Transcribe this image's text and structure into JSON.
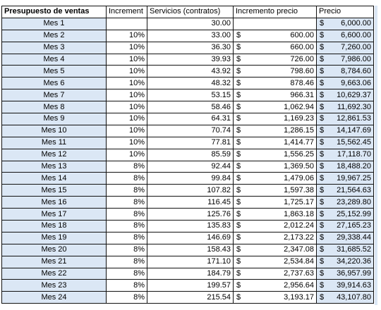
{
  "headers": [
    "Presupuesto de ventas",
    "Increment",
    "Servicios (contratos)",
    "Incremento precio",
    "Precio"
  ],
  "currency": "$",
  "rows": [
    {
      "label": "Mes 1",
      "pct": "",
      "serv": "30.00",
      "inc": "",
      "price": "6,000.00"
    },
    {
      "label": "Mes 2",
      "pct": "10%",
      "serv": "33.00",
      "inc": "600.00",
      "price": "6,600.00"
    },
    {
      "label": "Mes 3",
      "pct": "10%",
      "serv": "36.30",
      "inc": "660.00",
      "price": "7,260.00"
    },
    {
      "label": "Mes 4",
      "pct": "10%",
      "serv": "39.93",
      "inc": "726.00",
      "price": "7,986.00"
    },
    {
      "label": "Mes 5",
      "pct": "10%",
      "serv": "43.92",
      "inc": "798.60",
      "price": "8,784.60"
    },
    {
      "label": "Mes 6",
      "pct": "10%",
      "serv": "48.32",
      "inc": "878.46",
      "price": "9,663.06"
    },
    {
      "label": "Mes 7",
      "pct": "10%",
      "serv": "53.15",
      "inc": "966.31",
      "price": "10,629.37"
    },
    {
      "label": "Mes 8",
      "pct": "10%",
      "serv": "58.46",
      "inc": "1,062.94",
      "price": "11,692.30"
    },
    {
      "label": "Mes 9",
      "pct": "10%",
      "serv": "64.31",
      "inc": "1,169.23",
      "price": "12,861.53"
    },
    {
      "label": "Mes 10",
      "pct": "10%",
      "serv": "70.74",
      "inc": "1,286.15",
      "price": "14,147.69"
    },
    {
      "label": "Mes 11",
      "pct": "10%",
      "serv": "77.81",
      "inc": "1,414.77",
      "price": "15,562.45"
    },
    {
      "label": "Mes 12",
      "pct": "10%",
      "serv": "85.59",
      "inc": "1,556.25",
      "price": "17,118.70"
    },
    {
      "label": "Mes 13",
      "pct": "8%",
      "serv": "92.44",
      "inc": "1,369.50",
      "price": "18,488.20"
    },
    {
      "label": "Mes 14",
      "pct": "8%",
      "serv": "99.84",
      "inc": "1,479.06",
      "price": "19,967.25"
    },
    {
      "label": "Mes 15",
      "pct": "8%",
      "serv": "107.82",
      "inc": "1,597.38",
      "price": "21,564.63"
    },
    {
      "label": "Mes 16",
      "pct": "8%",
      "serv": "116.45",
      "inc": "1,725.17",
      "price": "23,289.80"
    },
    {
      "label": "Mes 17",
      "pct": "8%",
      "serv": "125.76",
      "inc": "1,863.18",
      "price": "25,152.99"
    },
    {
      "label": "Mes 18",
      "pct": "8%",
      "serv": "135.83",
      "inc": "2,012.24",
      "price": "27,165.23"
    },
    {
      "label": "Mes 19",
      "pct": "8%",
      "serv": "146.69",
      "inc": "2,173.22",
      "price": "29,338.44"
    },
    {
      "label": "Mes 20",
      "pct": "8%",
      "serv": "158.43",
      "inc": "2,347.08",
      "price": "31,685.52"
    },
    {
      "label": "Mes 21",
      "pct": "8%",
      "serv": "171.10",
      "inc": "2,534.84",
      "price": "34,220.36"
    },
    {
      "label": "Mes 22",
      "pct": "8%",
      "serv": "184.79",
      "inc": "2,737.63",
      "price": "36,957.99"
    },
    {
      "label": "Mes 23",
      "pct": "8%",
      "serv": "199.57",
      "inc": "2,956.64",
      "price": "39,914.63"
    },
    {
      "label": "Mes 24",
      "pct": "8%",
      "serv": "215.54",
      "inc": "3,193.17",
      "price": "43,107.80"
    }
  ],
  "colors": {
    "label_fill": "#dbe7f5",
    "price_fill": "#dbe7f5",
    "border": "#111111"
  }
}
